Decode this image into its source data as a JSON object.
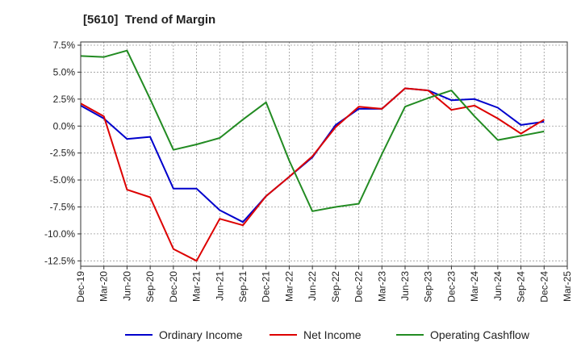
{
  "title": "[5610]  Trend of Margin",
  "chart_data": {
    "type": "line",
    "title": "[5610]  Trend of Margin",
    "xlabel": "",
    "ylabel": "",
    "categories": [
      "Dec-19",
      "Mar-20",
      "Jun-20",
      "Sep-20",
      "Dec-20",
      "Mar-21",
      "Jun-21",
      "Sep-21",
      "Dec-21",
      "Mar-22",
      "Jun-22",
      "Sep-22",
      "Dec-22",
      "Mar-23",
      "Jun-23",
      "Sep-23",
      "Dec-23",
      "Mar-24",
      "Jun-24",
      "Sep-24",
      "Dec-24",
      "Mar-25"
    ],
    "ylim": [
      -13.0,
      7.8
    ],
    "yticks": [
      7.5,
      5.0,
      2.5,
      0.0,
      -2.5,
      -5.0,
      -7.5,
      -10.0,
      -12.5
    ],
    "ytick_labels": [
      "7.5%",
      "5.0%",
      "2.5%",
      "0.0%",
      "-2.5%",
      "-5.0%",
      "-7.5%",
      "-10.0%",
      "-12.5%"
    ],
    "grid": true,
    "legend_position": "bottom",
    "series": [
      {
        "name": "Ordinary Income",
        "color": "#0000cc",
        "values": [
          1.9,
          0.7,
          -1.2,
          -1.0,
          -5.8,
          -5.8,
          -7.8,
          -8.9,
          -6.5,
          -4.7,
          -2.9,
          0.1,
          1.6,
          1.6,
          3.5,
          3.3,
          2.4,
          2.5,
          1.7,
          0.1,
          0.4,
          null
        ]
      },
      {
        "name": "Net Income",
        "color": "#dd0000",
        "values": [
          2.1,
          0.9,
          -5.9,
          -6.6,
          -11.4,
          -12.5,
          -8.6,
          -9.2,
          -6.5,
          -4.7,
          -2.8,
          -0.1,
          1.8,
          1.6,
          3.5,
          3.3,
          1.5,
          1.9,
          0.7,
          -0.7,
          0.6,
          null
        ]
      },
      {
        "name": "Operating Cashflow",
        "color": "#228b22",
        "values": [
          6.5,
          6.4,
          7.0,
          2.5,
          -2.2,
          -1.7,
          -1.1,
          0.6,
          2.2,
          -3.2,
          -7.9,
          -7.5,
          -7.2,
          -2.6,
          1.8,
          2.6,
          3.3,
          0.9,
          -1.3,
          -0.9,
          -0.5,
          null
        ]
      }
    ]
  }
}
